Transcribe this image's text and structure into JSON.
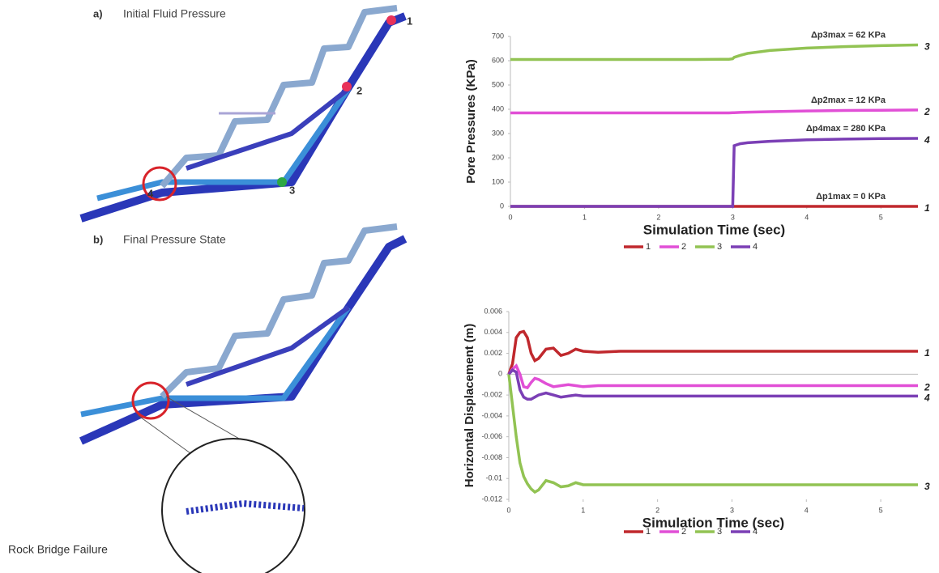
{
  "panels": [
    {
      "label": "a)",
      "title": "Initial Fluid Pressure",
      "points": [
        "1",
        "2",
        "3",
        "4"
      ]
    },
    {
      "label": "b)",
      "title": "Final Pressure State"
    }
  ],
  "inset_label": "Rock Bridge Failure",
  "chart_data": [
    {
      "type": "line",
      "ylabel": "Pore Pressures (KPa)",
      "xlabel": "Simulation Time (sec)",
      "x": [
        0,
        0.5,
        1,
        1.5,
        2,
        2.5,
        2.95,
        3,
        3.02,
        3.1,
        3.2,
        3.5,
        4,
        4.5,
        5,
        5.5
      ],
      "xlim": [
        0,
        5.5
      ],
      "xticks": [
        0,
        1,
        2,
        3,
        4,
        5
      ],
      "ylim": [
        0,
        700
      ],
      "yticks": [
        0,
        100,
        200,
        300,
        400,
        500,
        600,
        700
      ],
      "series": [
        {
          "name": "1",
          "color": "#c0282d",
          "values": [
            0,
            0,
            0,
            0,
            0,
            0,
            0,
            0,
            0,
            0,
            0,
            0,
            0,
            0,
            0,
            0
          ]
        },
        {
          "name": "2",
          "color": "#e14fd6",
          "values": [
            385,
            385,
            385,
            385,
            385,
            385,
            385,
            386,
            386,
            387,
            388,
            390,
            393,
            395,
            396,
            397
          ]
        },
        {
          "name": "3",
          "color": "#92c353",
          "values": [
            605,
            605,
            605,
            605,
            605,
            605,
            606,
            608,
            614,
            622,
            630,
            642,
            652,
            658,
            662,
            665
          ]
        },
        {
          "name": "4",
          "color": "#7b3fb5",
          "values": [
            0,
            0,
            0,
            0,
            0,
            0,
            0,
            0,
            250,
            258,
            262,
            268,
            274,
            277,
            279,
            280
          ]
        }
      ],
      "annotations": [
        "Δp1max = 0 KPa",
        "Δp2max = 12 KPa",
        "Δp3max = 62 KPa",
        "Δp4max = 280 KPa"
      ]
    },
    {
      "type": "line",
      "ylabel": "Horizontal Displacement (m)",
      "xlabel": "Simulation Time (sec)",
      "x": [
        0,
        0.05,
        0.1,
        0.15,
        0.2,
        0.25,
        0.3,
        0.35,
        0.4,
        0.5,
        0.6,
        0.7,
        0.8,
        0.9,
        1,
        1.2,
        1.5,
        2,
        3,
        4,
        5,
        5.5
      ],
      "xlim": [
        0,
        5.5
      ],
      "xticks": [
        0,
        1,
        2,
        3,
        4,
        5
      ],
      "ylim": [
        -0.012,
        0.006
      ],
      "yticks": [
        -0.012,
        -0.01,
        -0.008,
        -0.006,
        -0.004,
        -0.002,
        0,
        0.002,
        0.004,
        0.006
      ],
      "series": [
        {
          "name": "1",
          "color": "#c0282d",
          "values": [
            0,
            0.001,
            0.0035,
            0.004,
            0.0041,
            0.0035,
            0.002,
            0.0013,
            0.0015,
            0.0024,
            0.0025,
            0.0018,
            0.002,
            0.0024,
            0.0022,
            0.0021,
            0.0022,
            0.0022,
            0.0022,
            0.0022,
            0.0022,
            0.0022
          ]
        },
        {
          "name": "2",
          "color": "#e14fd6",
          "values": [
            0,
            0.0005,
            0.0008,
            0,
            -0.0012,
            -0.0013,
            -0.0008,
            -0.0004,
            -0.0005,
            -0.0009,
            -0.0012,
            -0.0011,
            -0.001,
            -0.0011,
            -0.0012,
            -0.0011,
            -0.0011,
            -0.0011,
            -0.0011,
            -0.0011,
            -0.0011,
            -0.0011
          ]
        },
        {
          "name": "3",
          "color": "#92c353",
          "values": [
            0,
            -0.003,
            -0.006,
            -0.0085,
            -0.0098,
            -0.0105,
            -0.011,
            -0.0113,
            -0.0111,
            -0.0102,
            -0.0104,
            -0.0108,
            -0.0107,
            -0.0104,
            -0.0106,
            -0.0106,
            -0.0106,
            -0.0106,
            -0.0106,
            -0.0106,
            -0.0106,
            -0.0106
          ]
        },
        {
          "name": "4",
          "color": "#7b3fb5",
          "values": [
            0,
            0.0004,
            0.0002,
            -0.0015,
            -0.0022,
            -0.0024,
            -0.0024,
            -0.0022,
            -0.002,
            -0.0018,
            -0.002,
            -0.0022,
            -0.0021,
            -0.002,
            -0.0021,
            -0.0021,
            -0.0021,
            -0.0021,
            -0.0021,
            -0.0021,
            -0.0021,
            -0.0021
          ]
        }
      ]
    }
  ]
}
